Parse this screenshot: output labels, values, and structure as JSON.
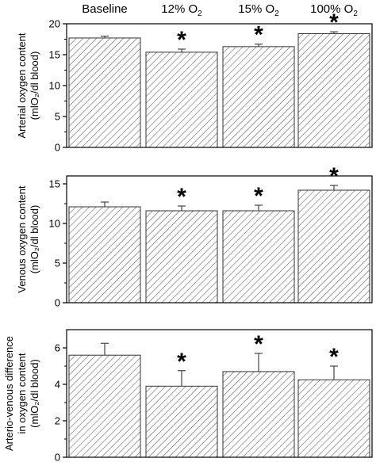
{
  "header": {
    "groups": [
      {
        "main": "Baseline",
        "sub": ""
      },
      {
        "main": "12% O",
        "sub": "2"
      },
      {
        "main": "15% O",
        "sub": "2"
      },
      {
        "main": "100% O",
        "sub": "2"
      }
    ]
  },
  "chart_data": [
    {
      "type": "bar",
      "categories": [
        "Baseline",
        "12% O2",
        "15% O2",
        "100% O2"
      ],
      "values": [
        17.7,
        15.4,
        16.3,
        18.4
      ],
      "errors": [
        0.3,
        0.5,
        0.4,
        0.3
      ],
      "significant": [
        false,
        true,
        true,
        true
      ],
      "ylabel_lines": [
        "Arterial oxygen content",
        "(mlO₂/dl blood)"
      ],
      "ylim": [
        0,
        20
      ],
      "yticks": [
        0,
        5,
        10,
        15,
        20
      ],
      "pattern": "diagonal-hatch"
    },
    {
      "type": "bar",
      "categories": [
        "Baseline",
        "12% O2",
        "15% O2",
        "100% O2"
      ],
      "values": [
        12.1,
        11.6,
        11.6,
        14.2
      ],
      "errors": [
        0.6,
        0.6,
        0.7,
        0.6
      ],
      "significant": [
        false,
        true,
        true,
        true
      ],
      "ylabel_lines": [
        "Venous oxygen content",
        "(mlO₂/dl blood)"
      ],
      "ylim": [
        0,
        16
      ],
      "yticks": [
        0,
        5,
        10,
        15
      ],
      "pattern": "diagonal-hatch"
    },
    {
      "type": "bar",
      "categories": [
        "Baseline",
        "12% O2",
        "15% O2",
        "100% O2"
      ],
      "values": [
        5.6,
        3.9,
        4.7,
        4.25
      ],
      "errors": [
        0.65,
        0.85,
        1.0,
        0.75
      ],
      "significant": [
        false,
        true,
        true,
        true
      ],
      "ylabel_lines": [
        "Arterio-venous difference",
        "in oxygen content",
        "(mlO₂/dl blood)"
      ],
      "ylim": [
        0,
        7
      ],
      "yticks": [
        0,
        2,
        4,
        6
      ],
      "pattern": "diagonal-hatch"
    }
  ],
  "significance_marker": "*"
}
